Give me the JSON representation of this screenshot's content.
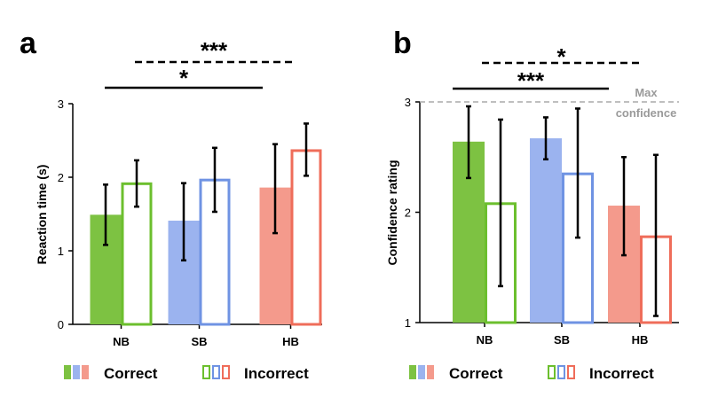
{
  "colors": {
    "NB": "#7dc242",
    "SB": "#9bb3ef",
    "HB": "#f49a8c",
    "NB_stroke": "#6cbf2e",
    "SB_stroke": "#6f93e3",
    "HB_stroke": "#ef6d5a"
  },
  "chart_data": [
    {
      "panel": "a",
      "type": "bar",
      "categories": [
        "NB",
        "SB",
        "HB"
      ],
      "ylabel": "Reaction time (s)",
      "ylim": [
        0,
        3
      ],
      "yticks": [
        "0",
        "1",
        "2",
        "3"
      ],
      "series": [
        {
          "name": "Correct",
          "values": [
            1.49,
            1.41,
            1.86
          ],
          "err_low": [
            1.08,
            0.87,
            1.24
          ],
          "err_high": [
            1.9,
            1.92,
            2.45
          ]
        },
        {
          "name": "Incorrect",
          "values": [
            1.93,
            1.98,
            2.38
          ],
          "err_low": [
            1.6,
            1.53,
            2.02
          ],
          "err_high": [
            2.23,
            2.4,
            2.73
          ]
        }
      ],
      "significance": [
        {
          "label": "***",
          "from": "NB",
          "to": "HB",
          "style": "dashed"
        },
        {
          "label": "*",
          "from": "NB",
          "to": "SB",
          "style": "solid"
        }
      ]
    },
    {
      "panel": "b",
      "type": "bar",
      "categories": [
        "NB",
        "SB",
        "HB"
      ],
      "ylabel": "Confidence rating",
      "ylim": [
        1,
        3
      ],
      "yticks": [
        "1",
        "2",
        "3"
      ],
      "reference_line": {
        "value": 3,
        "label_line1": "Max",
        "label_line2": "confidence"
      },
      "series": [
        {
          "name": "Correct",
          "values": [
            2.64,
            2.67,
            2.06
          ],
          "err_low": [
            2.31,
            2.48,
            1.61
          ],
          "err_high": [
            2.96,
            2.86,
            2.5
          ]
        },
        {
          "name": "Incorrect",
          "values": [
            2.09,
            2.36,
            1.79
          ],
          "err_low": [
            1.33,
            1.77,
            1.06
          ],
          "err_high": [
            2.84,
            2.94,
            2.52
          ]
        }
      ],
      "significance": [
        {
          "label": "*",
          "from": "NB",
          "to": "HB",
          "style": "dashed"
        },
        {
          "label": "***",
          "from": "NB",
          "to": "SB",
          "style": "solid"
        }
      ]
    }
  ],
  "legend": {
    "correct_label": "Correct",
    "incorrect_label": "Incorrect"
  }
}
